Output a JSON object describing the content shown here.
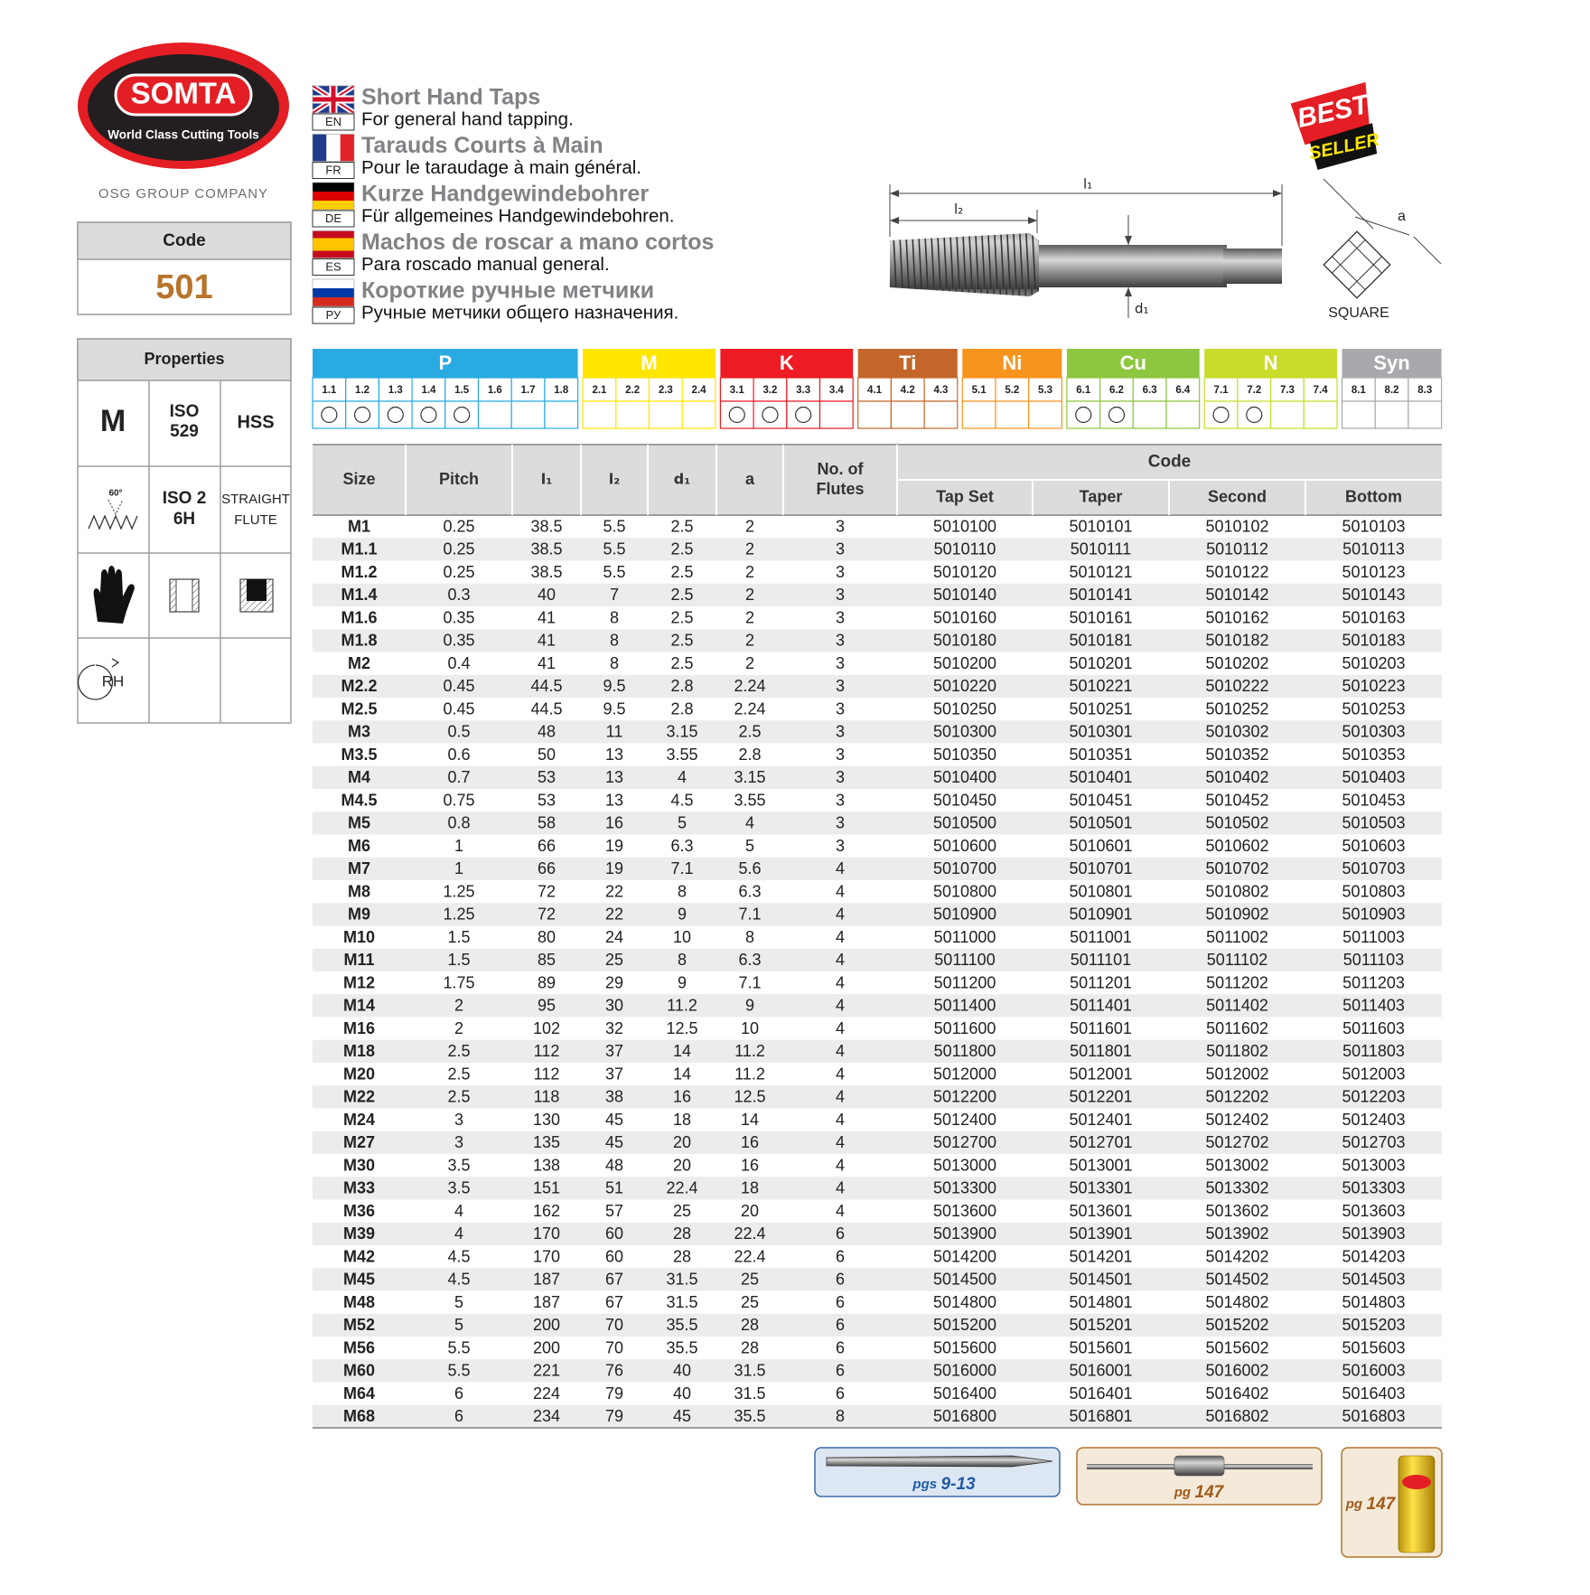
{
  "logo": {
    "brand": "SOMTA",
    "tagline": "World Class Cutting Tools",
    "group": "OSG GROUP COMPANY"
  },
  "code": {
    "label": "Code",
    "value": "501"
  },
  "properties": {
    "title": "Properties",
    "material": "M",
    "standard": [
      "ISO",
      "529"
    ],
    "substrate": "HSS",
    "angle": "60°",
    "tolerance": [
      "ISO 2",
      "6H"
    ],
    "flute": [
      "STRAIGHT",
      "FLUTE"
    ],
    "hand": "RH"
  },
  "languages": [
    {
      "code": "EN",
      "title": "Short Hand Taps",
      "subtitle": "For general hand tapping."
    },
    {
      "code": "FR",
      "title": "Tarauds Courts à Main",
      "subtitle": "Pour le taraudage à main général."
    },
    {
      "code": "DE",
      "title": "Kurze Handgewindebohrer",
      "subtitle": "Für allgemeines Handgewindebohren."
    },
    {
      "code": "ES",
      "title": "Machos de roscar a mano cortos",
      "subtitle": "Para roscado manual general."
    },
    {
      "code": "РУ",
      "title": "Короткие ручные метчики",
      "subtitle": "Ручные метчики общего назначения."
    }
  ],
  "badge": {
    "line1": "BEST",
    "line2": "SELLER"
  },
  "diagram": {
    "l1": "l₁",
    "l2": "l₂",
    "d1": "d₁",
    "a": "a",
    "square": "SQUARE"
  },
  "materials": [
    {
      "name": "P",
      "color": "#29abe2",
      "subs": [
        "1.1",
        "1.2",
        "1.3",
        "1.4",
        "1.5",
        "1.6",
        "1.7",
        "1.8"
      ],
      "marks": [
        true,
        true,
        true,
        true,
        true,
        false,
        false,
        false
      ]
    },
    {
      "name": "M",
      "color": "#ffe600",
      "subs": [
        "2.1",
        "2.2",
        "2.3",
        "2.4"
      ],
      "marks": [
        false,
        false,
        false,
        false
      ]
    },
    {
      "name": "K",
      "color": "#ed1c24",
      "subs": [
        "3.1",
        "3.2",
        "3.3",
        "3.4"
      ],
      "marks": [
        true,
        true,
        true,
        false
      ]
    },
    {
      "name": "Ti",
      "color": "#c4662a",
      "subs": [
        "4.1",
        "4.2",
        "4.3"
      ],
      "marks": [
        false,
        false,
        false
      ]
    },
    {
      "name": "Ni",
      "color": "#f7941d",
      "subs": [
        "5.1",
        "5.2",
        "5.3"
      ],
      "marks": [
        false,
        false,
        false
      ]
    },
    {
      "name": "Cu",
      "color": "#8dc63f",
      "subs": [
        "6.1",
        "6.2",
        "6.3",
        "6.4"
      ],
      "marks": [
        true,
        true,
        false,
        false
      ]
    },
    {
      "name": "N",
      "color": "#c8dc2a",
      "subs": [
        "7.1",
        "7.2",
        "7.3",
        "7.4"
      ],
      "marks": [
        true,
        true,
        false,
        false
      ]
    },
    {
      "name": "Syn",
      "color": "#a7a9ac",
      "subs": [
        "8.1",
        "8.2",
        "8.3"
      ],
      "marks": [
        false,
        false,
        false
      ]
    }
  ],
  "table": {
    "header": [
      "Size",
      "Pitch",
      "l₁",
      "l₂",
      "d₁",
      "a",
      [
        "No. of",
        "Flutes"
      ]
    ],
    "code_header": "Code",
    "code_columns": [
      "Tap Set",
      "Taper",
      "Second",
      "Bottom"
    ],
    "rows": [
      [
        "M1",
        "0.25",
        "38.5",
        "5.5",
        "2.5",
        "2",
        "3",
        "5010100",
        "5010101",
        "5010102",
        "5010103"
      ],
      [
        "M1.1",
        "0.25",
        "38.5",
        "5.5",
        "2.5",
        "2",
        "3",
        "5010110",
        "5010111",
        "5010112",
        "5010113"
      ],
      [
        "M1.2",
        "0.25",
        "38.5",
        "5.5",
        "2.5",
        "2",
        "3",
        "5010120",
        "5010121",
        "5010122",
        "5010123"
      ],
      [
        "M1.4",
        "0.3",
        "40",
        "7",
        "2.5",
        "2",
        "3",
        "5010140",
        "5010141",
        "5010142",
        "5010143"
      ],
      [
        "M1.6",
        "0.35",
        "41",
        "8",
        "2.5",
        "2",
        "3",
        "5010160",
        "5010161",
        "5010162",
        "5010163"
      ],
      [
        "M1.8",
        "0.35",
        "41",
        "8",
        "2.5",
        "2",
        "3",
        "5010180",
        "5010181",
        "5010182",
        "5010183"
      ],
      [
        "M2",
        "0.4",
        "41",
        "8",
        "2.5",
        "2",
        "3",
        "5010200",
        "5010201",
        "5010202",
        "5010203"
      ],
      [
        "M2.2",
        "0.45",
        "44.5",
        "9.5",
        "2.8",
        "2.24",
        "3",
        "5010220",
        "5010221",
        "5010222",
        "5010223"
      ],
      [
        "M2.5",
        "0.45",
        "44.5",
        "9.5",
        "2.8",
        "2.24",
        "3",
        "5010250",
        "5010251",
        "5010252",
        "5010253"
      ],
      [
        "M3",
        "0.5",
        "48",
        "11",
        "3.15",
        "2.5",
        "3",
        "5010300",
        "5010301",
        "5010302",
        "5010303"
      ],
      [
        "M3.5",
        "0.6",
        "50",
        "13",
        "3.55",
        "2.8",
        "3",
        "5010350",
        "5010351",
        "5010352",
        "5010353"
      ],
      [
        "M4",
        "0.7",
        "53",
        "13",
        "4",
        "3.15",
        "3",
        "5010400",
        "5010401",
        "5010402",
        "5010403"
      ],
      [
        "M4.5",
        "0.75",
        "53",
        "13",
        "4.5",
        "3.55",
        "3",
        "5010450",
        "5010451",
        "5010452",
        "5010453"
      ],
      [
        "M5",
        "0.8",
        "58",
        "16",
        "5",
        "4",
        "3",
        "5010500",
        "5010501",
        "5010502",
        "5010503"
      ],
      [
        "M6",
        "1",
        "66",
        "19",
        "6.3",
        "5",
        "3",
        "5010600",
        "5010601",
        "5010602",
        "5010603"
      ],
      [
        "M7",
        "1",
        "66",
        "19",
        "7.1",
        "5.6",
        "4",
        "5010700",
        "5010701",
        "5010702",
        "5010703"
      ],
      [
        "M8",
        "1.25",
        "72",
        "22",
        "8",
        "6.3",
        "4",
        "5010800",
        "5010801",
        "5010802",
        "5010803"
      ],
      [
        "M9",
        "1.25",
        "72",
        "22",
        "9",
        "7.1",
        "4",
        "5010900",
        "5010901",
        "5010902",
        "5010903"
      ],
      [
        "M10",
        "1.5",
        "80",
        "24",
        "10",
        "8",
        "4",
        "5011000",
        "5011001",
        "5011002",
        "5011003"
      ],
      [
        "M11",
        "1.5",
        "85",
        "25",
        "8",
        "6.3",
        "4",
        "5011100",
        "5011101",
        "5011102",
        "5011103"
      ],
      [
        "M12",
        "1.75",
        "89",
        "29",
        "9",
        "7.1",
        "4",
        "5011200",
        "5011201",
        "5011202",
        "5011203"
      ],
      [
        "M14",
        "2",
        "95",
        "30",
        "11.2",
        "9",
        "4",
        "5011400",
        "5011401",
        "5011402",
        "5011403"
      ],
      [
        "M16",
        "2",
        "102",
        "32",
        "12.5",
        "10",
        "4",
        "5011600",
        "5011601",
        "5011602",
        "5011603"
      ],
      [
        "M18",
        "2.5",
        "112",
        "37",
        "14",
        "11.2",
        "4",
        "5011800",
        "5011801",
        "5011802",
        "5011803"
      ],
      [
        "M20",
        "2.5",
        "112",
        "37",
        "14",
        "11.2",
        "4",
        "5012000",
        "5012001",
        "5012002",
        "5012003"
      ],
      [
        "M22",
        "2.5",
        "118",
        "38",
        "16",
        "12.5",
        "4",
        "5012200",
        "5012201",
        "5012202",
        "5012203"
      ],
      [
        "M24",
        "3",
        "130",
        "45",
        "18",
        "14",
        "4",
        "5012400",
        "5012401",
        "5012402",
        "5012403"
      ],
      [
        "M27",
        "3",
        "135",
        "45",
        "20",
        "16",
        "4",
        "5012700",
        "5012701",
        "5012702",
        "5012703"
      ],
      [
        "M30",
        "3.5",
        "138",
        "48",
        "20",
        "16",
        "4",
        "5013000",
        "5013001",
        "5013002",
        "5013003"
      ],
      [
        "M33",
        "3.5",
        "151",
        "51",
        "22.4",
        "18",
        "4",
        "5013300",
        "5013301",
        "5013302",
        "5013303"
      ],
      [
        "M36",
        "4",
        "162",
        "57",
        "25",
        "20",
        "4",
        "5013600",
        "5013601",
        "5013602",
        "5013603"
      ],
      [
        "M39",
        "4",
        "170",
        "60",
        "28",
        "22.4",
        "6",
        "5013900",
        "5013901",
        "5013902",
        "5013903"
      ],
      [
        "M42",
        "4.5",
        "170",
        "60",
        "28",
        "22.4",
        "6",
        "5014200",
        "5014201",
        "5014202",
        "5014203"
      ],
      [
        "M45",
        "4.5",
        "187",
        "67",
        "31.5",
        "25",
        "6",
        "5014500",
        "5014501",
        "5014502",
        "5014503"
      ],
      [
        "M48",
        "5",
        "187",
        "67",
        "31.5",
        "25",
        "6",
        "5014800",
        "5014801",
        "5014802",
        "5014803"
      ],
      [
        "M52",
        "5",
        "200",
        "70",
        "35.5",
        "28",
        "6",
        "5015200",
        "5015201",
        "5015202",
        "5015203"
      ],
      [
        "M56",
        "5.5",
        "200",
        "70",
        "35.5",
        "28",
        "6",
        "5015600",
        "5015601",
        "5015602",
        "5015603"
      ],
      [
        "M60",
        "5.5",
        "221",
        "76",
        "40",
        "31.5",
        "6",
        "5016000",
        "5016001",
        "5016002",
        "5016003"
      ],
      [
        "M64",
        "6",
        "224",
        "79",
        "40",
        "31.5",
        "6",
        "5016400",
        "5016401",
        "5016402",
        "5016403"
      ],
      [
        "M68",
        "6",
        "234",
        "79",
        "45",
        "35.5",
        "8",
        "5016800",
        "5016801",
        "5016802",
        "5016803"
      ]
    ]
  },
  "references": [
    {
      "prefix": "pgs",
      "pages": "9-13"
    },
    {
      "prefix": "pg",
      "pages": "147"
    },
    {
      "prefix": "pg",
      "pages": "147"
    }
  ]
}
